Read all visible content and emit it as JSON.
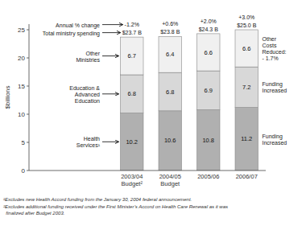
{
  "chart_data": {
    "type": "bar",
    "stacked": true,
    "data_labels": true,
    "grid": false,
    "categories": [
      "2003/04\nBudget²",
      "2004/05\nBudget",
      "2005/06",
      "2006/07"
    ],
    "series": [
      {
        "name": "Health\nServices¹",
        "color": "#b0b0b0",
        "values": [
          10.2,
          10.6,
          10.8,
          11.2
        ]
      },
      {
        "name": "Education &\nAdvanced\nEducation",
        "color": "#d8d8d8",
        "values": [
          6.8,
          6.8,
          6.9,
          7.2
        ]
      },
      {
        "name": "Other\nMinistries",
        "color": "#f0f0f0",
        "values": [
          6.7,
          6.4,
          6.6,
          6.6
        ]
      }
    ],
    "totals": {
      "values": [
        23.7,
        23.8,
        24.3,
        25.0
      ],
      "value_labels": [
        "$23.7 B",
        "$23.8 B",
        "$24.3 B",
        "$25.0 B"
      ]
    },
    "change_labels": [
      "-1.2%",
      "+0.6%",
      "+2.0%",
      "+3.0%"
    ],
    "total_annotation": "Total ministry spending",
    "change_annotation": "Annual % change",
    "right_labels": [
      "Funding\nIncreased",
      "Funding\nIncreased",
      "Other\nCosts\nReduced:\n- 1.7%"
    ],
    "ylabel": "$billions",
    "ylim": [
      0,
      26
    ],
    "yticks": [
      0,
      5,
      10,
      15,
      20,
      25
    ],
    "footnotes": [
      "¹Excludes new Health Accord funding from the January 30, 2004 federal announcement.",
      "²Excludes additional funding received under the First Minister’s Accord on Health Care Renewal as it was\n  finalized after Budget 2003."
    ]
  }
}
